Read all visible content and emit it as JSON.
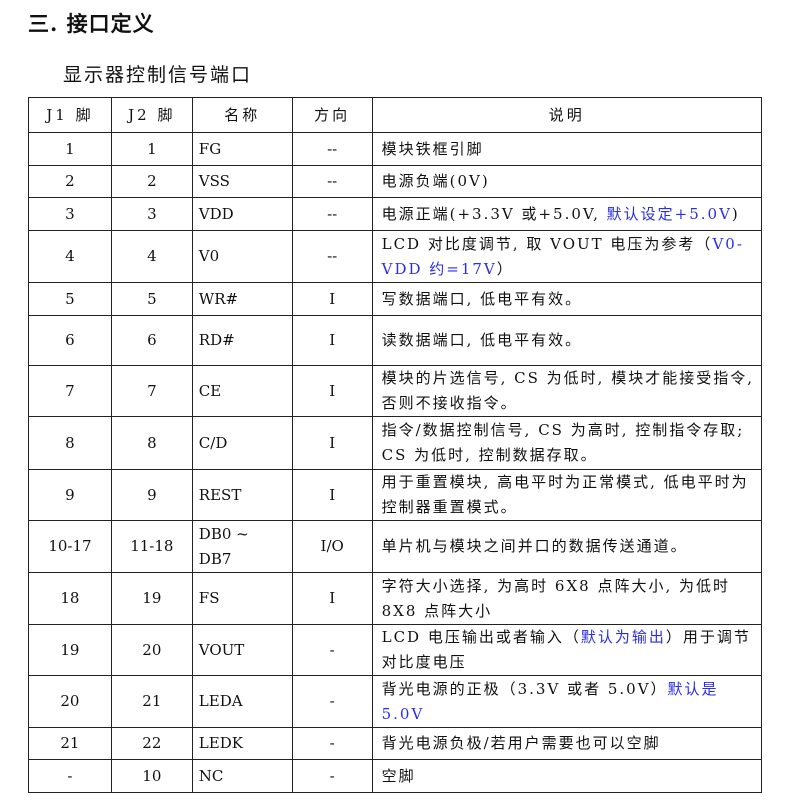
{
  "section_title": "三. 接口定义",
  "subtitle": "显示器控制信号端口",
  "accent_color": "#2a2ee6",
  "table": {
    "headers": [
      "J1 脚",
      "J2 脚",
      "名称",
      "方向",
      "说明"
    ],
    "rows": [
      {
        "j1": "1",
        "j2": "1",
        "name": "FG",
        "dir": "--",
        "desc": [
          {
            "t": "模块铁框引脚"
          }
        ]
      },
      {
        "j1": "2",
        "j2": "2",
        "name": "VSS",
        "dir": "--",
        "desc": [
          {
            "t": "电源负端(0V)"
          }
        ]
      },
      {
        "j1": "3",
        "j2": "3",
        "name": "VDD",
        "dir": "--",
        "desc": [
          {
            "t": "电源正端(+3.3V 或+5.0V, "
          },
          {
            "t": "默认设定+5.0V",
            "blue": true
          },
          {
            "t": ")"
          }
        ]
      },
      {
        "j1": "4",
        "j2": "4",
        "name": "V0",
        "dir": "--",
        "desc": [
          {
            "t": "LCD 对比度调节, 取 VOUT 电压为参考（"
          },
          {
            "t": "V0-VDD 约=17V",
            "blue": true
          },
          {
            "t": "）"
          }
        ]
      },
      {
        "j1": "5",
        "j2": "5",
        "name": "WR#",
        "dir": "I",
        "desc": [
          {
            "t": "写数据端口, 低电平有效。"
          }
        ]
      },
      {
        "j1": "6",
        "j2": "6",
        "name": "RD#",
        "dir": "I",
        "desc": [
          {
            "t": "读数据端口, 低电平有效。"
          }
        ]
      },
      {
        "j1": "7",
        "j2": "7",
        "name": "CE",
        "dir": "I",
        "desc": [
          {
            "t": "模块的片选信号, CS 为低时, 模块才能接受指令, 否则不接收指令。"
          }
        ]
      },
      {
        "j1": "8",
        "j2": "8",
        "name": "C/D",
        "dir": "I",
        "desc": [
          {
            "t": "指令/数据控制信号, CS 为高时, 控制指令存取;    CS 为低时, 控制数据存取。"
          }
        ]
      },
      {
        "j1": "9",
        "j2": "9",
        "name": "REST",
        "dir": "I",
        "desc": [
          {
            "t": "用于重置模块, 高电平时为正常模式, 低电平时为控制器重置模式。"
          }
        ]
      },
      {
        "j1": "10-17",
        "j2": "11-18",
        "name": "DB0 ~ DB7",
        "dir": "I/O",
        "desc": [
          {
            "t": "单片机与模块之间并口的数据传送通道。"
          }
        ]
      },
      {
        "j1": "18",
        "j2": "19",
        "name": "FS",
        "dir": "I",
        "desc": [
          {
            "t": "字符大小选择, 为高时 6X8 点阵大小, 为低时 8X8 点阵大小"
          }
        ]
      },
      {
        "j1": "19",
        "j2": "20",
        "name": "VOUT",
        "dir": "-",
        "desc": [
          {
            "t": "LCD 电压输出或者输入（"
          },
          {
            "t": "默认为输出",
            "blue": true
          },
          {
            "t": "）用于调节对比度电压"
          }
        ]
      },
      {
        "j1": "20",
        "j2": "21",
        "name": "LEDA",
        "dir": "-",
        "desc": [
          {
            "t": "背光电源的正极（3.3V 或者 5.0V）"
          },
          {
            "t": "默认是 5.0V",
            "blue": true
          }
        ]
      },
      {
        "j1": "21",
        "j2": "22",
        "name": "LEDK",
        "dir": "-",
        "desc": [
          {
            "t": "背光电源负极/若用户需要也可以空脚"
          }
        ]
      },
      {
        "j1": "-",
        "j2": "10",
        "name": "NC",
        "dir": "-",
        "desc": [
          {
            "t": "空脚"
          }
        ]
      }
    ]
  }
}
